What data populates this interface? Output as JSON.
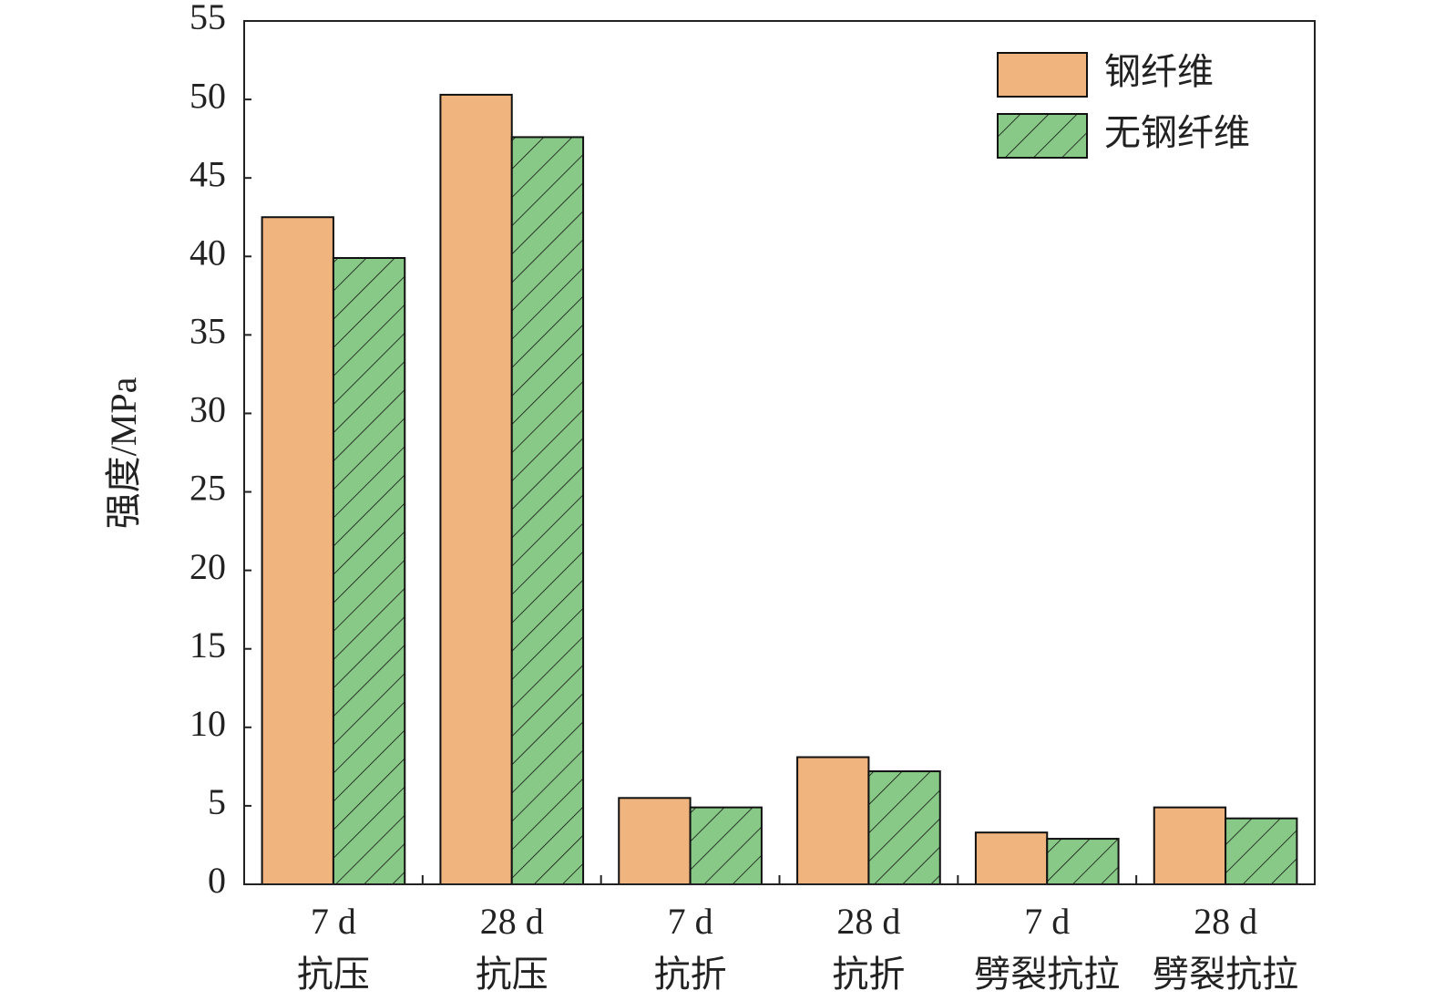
{
  "chart_data": {
    "type": "bar",
    "y_label": "强度/MPa",
    "categories": [
      [
        "7 d",
        "抗压"
      ],
      [
        "28 d",
        "抗压"
      ],
      [
        "7 d",
        "抗折"
      ],
      [
        "28 d",
        "抗折"
      ],
      [
        "7 d",
        "劈裂抗拉"
      ],
      [
        "28 d",
        "劈裂抗拉"
      ]
    ],
    "series": [
      {
        "name": "钢纤维",
        "color": "#f0b47e",
        "hatch": false,
        "values": [
          42.5,
          50.3,
          5.5,
          8.1,
          3.3,
          4.9
        ]
      },
      {
        "name": "无钢纤维",
        "color": "#88c987",
        "hatch": true,
        "values": [
          39.9,
          47.6,
          4.9,
          7.2,
          2.9,
          4.2
        ]
      }
    ],
    "ylim": [
      0,
      55
    ],
    "yticks": [
      0,
      5,
      10,
      15,
      20,
      25,
      30,
      35,
      40,
      45,
      50,
      55
    ],
    "legend": "upper right"
  }
}
